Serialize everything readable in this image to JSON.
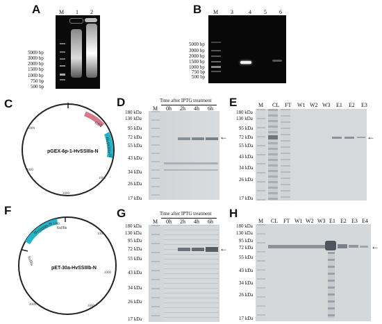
{
  "panels": {
    "A": {
      "letter": "A",
      "lanes": [
        "M",
        "1",
        "2"
      ],
      "markers": [
        "5000 bp",
        "3000 bp",
        "2000 bp",
        "1500 bp",
        "1000 bp",
        "750 bp",
        "500 bp"
      ]
    },
    "B": {
      "letter": "B",
      "lanes": [
        "M",
        "3",
        "4",
        "5",
        "6"
      ],
      "markers": [
        "5000 bp",
        "3000 bp",
        "2000 bp",
        "1500 bp",
        "1000 bp",
        "750 bp",
        "500 bp"
      ]
    },
    "C": {
      "letter": "C",
      "plasmid": "pGEX-6p-1-HvSSIIIa-N",
      "features": [
        "GST",
        "HvSSIIIa-N"
      ],
      "ticks": [
        "1000",
        "2000",
        "3000",
        "4000",
        "5000"
      ]
    },
    "D": {
      "letter": "D",
      "header": "Time after IPTG treatment",
      "lanes": [
        "M",
        "0h",
        "2h",
        "4h",
        "6h"
      ],
      "markers": [
        "180 kDa",
        "130 kDa",
        "95 kDa",
        "72 kDa",
        "55 kDa",
        "43 kDa",
        "34 kDa",
        "26 kDa",
        "17 kDa"
      ]
    },
    "E": {
      "letter": "E",
      "lanes": [
        "M",
        "CL",
        "FT",
        "W1",
        "W2",
        "W3",
        "E1",
        "E2",
        "E3"
      ],
      "markers": [
        "180 kDa",
        "130 kDa",
        "95 kDa",
        "72 kDa",
        "55 kDa",
        "43 kDa",
        "34 kDa",
        "26 kDa",
        "17 kDa"
      ]
    },
    "F": {
      "letter": "F",
      "plasmid": "pET-30a-HvSSIIIb-N",
      "features": [
        "HvSSIIIb-N",
        "6xHis",
        "6xHis"
      ],
      "ticks": [
        "1000",
        "2000",
        "3000",
        "4000",
        "5000"
      ]
    },
    "G": {
      "letter": "G",
      "header": "Time after IPTG treatment",
      "lanes": [
        "M",
        "0h",
        "2h",
        "4h",
        "6h"
      ],
      "markers": [
        "180 kDa",
        "130 kDa",
        "95 kDa",
        "72 kDa",
        "55 kDa",
        "43 kDa",
        "34 kDa",
        "26 kDa",
        "17 kDa"
      ]
    },
    "H": {
      "letter": "H",
      "lanes": [
        "M",
        "CL",
        "FT",
        "W1",
        "W2",
        "W3",
        "E1",
        "E2",
        "E3",
        "E4"
      ],
      "markers": [
        "180 kDa",
        "130 kDa",
        "95 kDa",
        "72 kDa",
        "55 kDa",
        "43 kDa",
        "34 kDa",
        "26 kDa",
        "17 kDa"
      ]
    }
  }
}
